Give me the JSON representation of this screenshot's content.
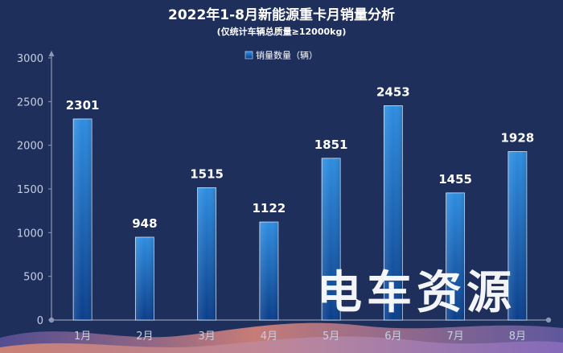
{
  "chart_data": {
    "type": "bar",
    "title": "2022年1-8月新能源重卡月销量分析",
    "subtitle": "(仅统计车辆总质量≥12000kg)",
    "categories": [
      "1月",
      "2月",
      "3月",
      "4月",
      "5月",
      "6月",
      "7月",
      "8月"
    ],
    "series": [
      {
        "name": "销量数量（辆）",
        "values": [
          2301,
          948,
          1515,
          1122,
          1851,
          2453,
          1455,
          1928
        ]
      }
    ],
    "ylim": [
      0,
      3000
    ],
    "yticks": [
      0,
      500,
      1000,
      1500,
      2000,
      2500,
      3000
    ],
    "grid": false,
    "legend_position": "top-center",
    "colors": {
      "background": "#1f2f5c",
      "bar_top": "#2e8de0",
      "bar_bottom": "#0b3e8a",
      "bar_edge": "#cfe6ff",
      "axis": "#8c97b3",
      "tick_text": "#c7cfe0",
      "title": "#ffffff",
      "data_label": "#ffffff"
    }
  },
  "watermark": {
    "text": "电车资源"
  }
}
